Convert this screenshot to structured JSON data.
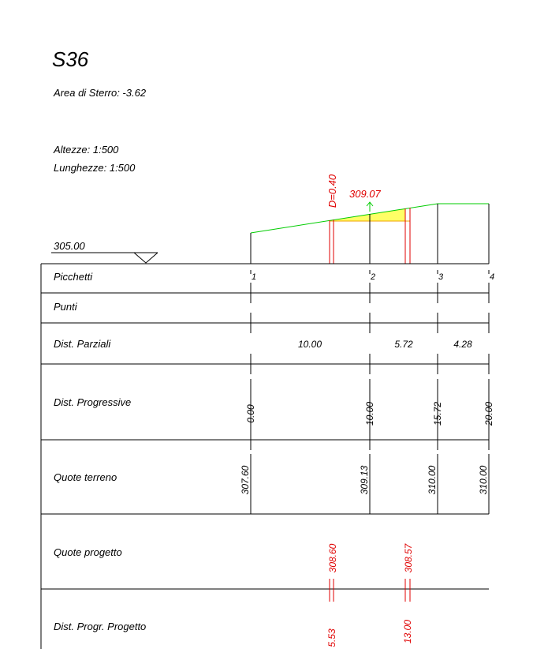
{
  "header": {
    "title": "S36",
    "area": "Area di Sterro: -3.62",
    "scale_heights": "Altezze:  1:500",
    "scale_lengths": "Lunghezze: 1:500"
  },
  "profile": {
    "reference": "305.00",
    "offset_label": "D=0.40",
    "elevation_label": "309.07"
  },
  "table": {
    "row_labels": [
      "Picchetti",
      "Punti",
      "Dist. Parziali",
      "Dist. Progressive",
      "Quote terreno",
      "Quote progetto",
      "Dist. Progr. Progetto"
    ],
    "stations": [
      "1",
      "2",
      "3",
      "4"
    ],
    "partial_distances": [
      "10.00",
      "5.72",
      "4.28"
    ],
    "progressive_distances": [
      "0.00",
      "10.00",
      "15.72",
      "20.00"
    ],
    "ground_elevations": [
      "307.60",
      "309.13",
      "310.00",
      "310.00"
    ],
    "design_elevations": [
      "308.60",
      "308.57"
    ],
    "design_progressive": [
      "5.53",
      "13.00"
    ]
  }
}
